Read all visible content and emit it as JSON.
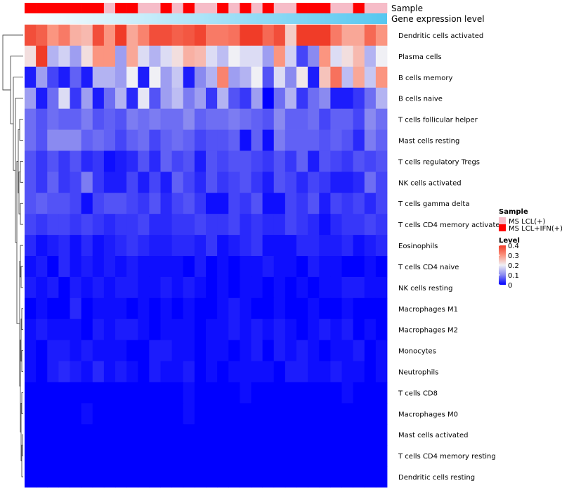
{
  "chart_data": {
    "type": "heatmap",
    "title": "",
    "annotation_labels": [
      "Sample",
      "Gene expression level"
    ],
    "sample_groups": [
      "MS LCL+IFN(+)",
      "MS LCL+IFN(+)",
      "MS LCL+IFN(+)",
      "MS LCL+IFN(+)",
      "MS LCL+IFN(+)",
      "MS LCL+IFN(+)",
      "MS LCL+IFN(+)",
      "MS LCL(+)",
      "MS LCL+IFN(+)",
      "MS LCL+IFN(+)",
      "MS LCL(+)",
      "MS LCL(+)",
      "MS LCL+IFN(+)",
      "MS LCL(+)",
      "MS LCL+IFN(+)",
      "MS LCL(+)",
      "MS LCL(+)",
      "MS LCL+IFN(+)",
      "MS LCL(+)",
      "MS LCL+IFN(+)",
      "MS LCL(+)",
      "MS LCL+IFN(+)",
      "MS LCL(+)",
      "MS LCL(+)",
      "MS LCL+IFN(+)",
      "MS LCL+IFN(+)",
      "MS LCL+IFN(+)",
      "MS LCL(+)",
      "MS LCL(+)",
      "MS LCL+IFN(+)",
      "MS LCL(+)",
      "MS LCL(+)"
    ],
    "expression_level": [
      0.0,
      0.03,
      0.06,
      0.1,
      0.13,
      0.16,
      0.19,
      0.23,
      0.26,
      0.29,
      0.32,
      0.35,
      0.39,
      0.42,
      0.45,
      0.48,
      0.52,
      0.55,
      0.58,
      0.61,
      0.65,
      0.68,
      0.71,
      0.74,
      0.77,
      0.81,
      0.84,
      0.87,
      0.9,
      0.94,
      0.97,
      1.0
    ],
    "rows": [
      "Dendritic cells activated",
      "Plasma cells",
      "B cells memory",
      "B cells naive",
      "T cells follicular helper",
      "Mast cells resting",
      "T cells regulatory  Tregs",
      "NK cells activated",
      "T cells gamma delta",
      "T cells CD4 memory activated",
      "Eosinophils",
      "T cells CD4 naive",
      "NK cells resting",
      "Macrophages M1",
      "Macrophages M2",
      "Monocytes",
      "Neutrophils",
      "T cells CD8",
      "Macrophages M0",
      "Mast cells activated",
      "T cells CD4 memory resting",
      "Dendritic cells resting"
    ],
    "values": [
      [
        0.38,
        0.36,
        0.3,
        0.33,
        0.27,
        0.26,
        0.38,
        0.3,
        0.4,
        0.28,
        0.32,
        0.38,
        0.38,
        0.36,
        0.37,
        0.39,
        0.33,
        0.33,
        0.34,
        0.4,
        0.4,
        0.35,
        0.38,
        0.24,
        0.4,
        0.4,
        0.4,
        0.33,
        0.28,
        0.28,
        0.35,
        0.3
      ],
      [
        0.22,
        0.4,
        0.14,
        0.17,
        0.12,
        0.22,
        0.3,
        0.3,
        0.12,
        0.28,
        0.18,
        0.14,
        0.18,
        0.22,
        0.27,
        0.26,
        0.18,
        0.15,
        0.2,
        0.18,
        0.18,
        0.12,
        0.3,
        0.17,
        0.05,
        0.1,
        0.3,
        0.18,
        0.22,
        0.26,
        0.14,
        0.2
      ],
      [
        0.02,
        0.12,
        0.05,
        0.02,
        0.07,
        0.02,
        0.14,
        0.14,
        0.12,
        0.2,
        0.02,
        0.2,
        0.12,
        0.16,
        0.02,
        0.1,
        0.14,
        0.32,
        0.12,
        0.14,
        0.2,
        0.06,
        0.18,
        0.1,
        0.21,
        0.02,
        0.25,
        0.34,
        0.15,
        0.28,
        0.16,
        0.3
      ],
      [
        0.12,
        0.02,
        0.08,
        0.18,
        0.04,
        0.12,
        0.02,
        0.08,
        0.14,
        0.03,
        0.19,
        0.06,
        0.12,
        0.15,
        0.09,
        0.12,
        0.04,
        0.14,
        0.06,
        0.04,
        0.12,
        0.0,
        0.08,
        0.14,
        0.04,
        0.08,
        0.1,
        0.02,
        0.02,
        0.04,
        0.08,
        0.14
      ],
      [
        0.08,
        0.06,
        0.08,
        0.07,
        0.07,
        0.09,
        0.06,
        0.07,
        0.06,
        0.09,
        0.08,
        0.09,
        0.08,
        0.08,
        0.1,
        0.07,
        0.08,
        0.08,
        0.09,
        0.08,
        0.07,
        0.06,
        0.1,
        0.07,
        0.07,
        0.08,
        0.05,
        0.07,
        0.07,
        0.05,
        0.1,
        0.08
      ],
      [
        0.08,
        0.06,
        0.1,
        0.1,
        0.1,
        0.07,
        0.08,
        0.07,
        0.05,
        0.07,
        0.08,
        0.05,
        0.07,
        0.08,
        0.07,
        0.05,
        0.06,
        0.06,
        0.07,
        0.01,
        0.07,
        0.01,
        0.09,
        0.07,
        0.07,
        0.07,
        0.06,
        0.07,
        0.06,
        0.03,
        0.09,
        0.07
      ],
      [
        0.06,
        0.04,
        0.06,
        0.04,
        0.06,
        0.03,
        0.04,
        0.01,
        0.02,
        0.03,
        0.06,
        0.03,
        0.07,
        0.05,
        0.06,
        0.02,
        0.06,
        0.05,
        0.06,
        0.06,
        0.05,
        0.04,
        0.06,
        0.04,
        0.07,
        0.02,
        0.06,
        0.05,
        0.04,
        0.06,
        0.05,
        0.06
      ],
      [
        0.06,
        0.04,
        0.07,
        0.04,
        0.05,
        0.09,
        0.04,
        0.02,
        0.02,
        0.05,
        0.02,
        0.05,
        0.02,
        0.07,
        0.05,
        0.03,
        0.06,
        0.04,
        0.05,
        0.06,
        0.04,
        0.02,
        0.06,
        0.05,
        0.03,
        0.05,
        0.04,
        0.02,
        0.02,
        0.03,
        0.08,
        0.05
      ],
      [
        0.06,
        0.07,
        0.06,
        0.06,
        0.05,
        0.01,
        0.05,
        0.06,
        0.06,
        0.05,
        0.04,
        0.06,
        0.03,
        0.05,
        0.06,
        0.04,
        0.01,
        0.01,
        0.05,
        0.04,
        0.06,
        0.01,
        0.01,
        0.05,
        0.04,
        0.06,
        0.02,
        0.05,
        0.04,
        0.05,
        0.03,
        0.05
      ],
      [
        0.05,
        0.04,
        0.05,
        0.05,
        0.04,
        0.05,
        0.04,
        0.03,
        0.04,
        0.04,
        0.05,
        0.03,
        0.03,
        0.04,
        0.04,
        0.05,
        0.04,
        0.04,
        0.05,
        0.03,
        0.04,
        0.03,
        0.03,
        0.05,
        0.04,
        0.03,
        0.01,
        0.03,
        0.04,
        0.04,
        0.05,
        0.04
      ],
      [
        0.03,
        0.01,
        0.02,
        0.03,
        0.01,
        0.03,
        0.01,
        0.02,
        0.03,
        0.04,
        0.03,
        0.02,
        0.02,
        0.03,
        0.03,
        0.02,
        0.04,
        0.01,
        0.02,
        0.03,
        0.04,
        0.01,
        0.01,
        0.01,
        0.03,
        0.03,
        0.02,
        0.02,
        0.03,
        0.01,
        0.02,
        0.03
      ],
      [
        0.01,
        0.02,
        0.0,
        0.03,
        0.01,
        0.02,
        0.01,
        0.02,
        0.01,
        0.02,
        0.01,
        0.01,
        0.01,
        0.01,
        0.0,
        0.02,
        0.0,
        0.01,
        0.0,
        0.01,
        0.01,
        0.02,
        0.01,
        0.01,
        0.0,
        0.02,
        0.01,
        0.01,
        0.0,
        0.0,
        0.01,
        0.0
      ],
      [
        0.02,
        0.01,
        0.02,
        0.0,
        0.02,
        0.01,
        0.02,
        0.01,
        0.02,
        0.02,
        0.01,
        0.01,
        0.02,
        0.01,
        0.02,
        0.01,
        0.0,
        0.01,
        0.0,
        0.01,
        0.01,
        0.0,
        0.01,
        0.0,
        0.01,
        0.0,
        0.01,
        0.01,
        0.02,
        0.02,
        0.01,
        0.01
      ],
      [
        0.0,
        0.01,
        0.0,
        0.0,
        0.03,
        0.0,
        0.01,
        0.01,
        0.01,
        0.0,
        0.01,
        0.0,
        0.01,
        0.0,
        0.01,
        0.0,
        0.0,
        0.01,
        0.02,
        0.01,
        0.0,
        0.0,
        0.01,
        0.0,
        0.0,
        0.01,
        0.0,
        0.0,
        0.01,
        0.0,
        0.0,
        0.0
      ],
      [
        0.01,
        0.02,
        0.01,
        0.01,
        0.01,
        0.0,
        0.02,
        0.01,
        0.02,
        0.02,
        0.01,
        0.0,
        0.01,
        0.01,
        0.01,
        0.0,
        0.01,
        0.01,
        0.02,
        0.01,
        0.02,
        0.01,
        0.02,
        0.01,
        0.0,
        0.01,
        0.02,
        0.01,
        0.02,
        0.0,
        0.01,
        0.0
      ],
      [
        0.01,
        0.0,
        0.02,
        0.02,
        0.01,
        0.02,
        0.01,
        0.01,
        0.01,
        0.0,
        0.0,
        0.02,
        0.02,
        0.01,
        0.01,
        0.0,
        0.01,
        0.01,
        0.0,
        0.01,
        0.02,
        0.0,
        0.02,
        0.01,
        0.02,
        0.01,
        0.0,
        0.01,
        0.01,
        0.02,
        0.0,
        0.01
      ],
      [
        0.01,
        0.0,
        0.02,
        0.03,
        0.02,
        0.01,
        0.03,
        0.01,
        0.02,
        0.01,
        0.0,
        0.02,
        0.01,
        0.01,
        0.02,
        0.0,
        0.01,
        0.0,
        0.01,
        0.01,
        0.01,
        0.01,
        0.0,
        0.02,
        0.02,
        0.01,
        0.01,
        0.02,
        0.01,
        0.01,
        0.0,
        0.01
      ],
      [
        0.0,
        0.0,
        0.0,
        0.0,
        0.0,
        0.0,
        0.0,
        0.0,
        0.0,
        0.0,
        0.0,
        0.0,
        0.0,
        0.0,
        0.01,
        0.0,
        0.0,
        0.0,
        0.0,
        0.01,
        0.0,
        0.0,
        0.0,
        0.0,
        0.0,
        0.0,
        0.0,
        0.0,
        0.01,
        0.0,
        0.0,
        0.0
      ],
      [
        0.0,
        0.0,
        0.0,
        0.0,
        0.0,
        0.01,
        0.0,
        0.0,
        0.0,
        0.0,
        0.0,
        0.0,
        0.0,
        0.0,
        0.01,
        0.0,
        0.0,
        0.0,
        0.0,
        0.0,
        0.0,
        0.0,
        0.0,
        0.0,
        0.0,
        0.0,
        0.0,
        0.0,
        0.0,
        0.0,
        0.0,
        0.0
      ],
      [
        0.0,
        0.0,
        0.0,
        0.0,
        0.0,
        0.0,
        0.0,
        0.0,
        0.0,
        0.0,
        0.0,
        0.0,
        0.0,
        0.0,
        0.0,
        0.0,
        0.0,
        0.0,
        0.0,
        0.0,
        0.0,
        0.0,
        0.0,
        0.0,
        0.0,
        0.0,
        0.0,
        0.0,
        0.0,
        0.0,
        0.0,
        0.0
      ],
      [
        0.0,
        0.0,
        0.0,
        0.0,
        0.0,
        0.0,
        0.0,
        0.0,
        0.0,
        0.0,
        0.0,
        0.0,
        0.0,
        0.0,
        0.0,
        0.0,
        0.0,
        0.0,
        0.0,
        0.0,
        0.0,
        0.0,
        0.0,
        0.0,
        0.0,
        0.0,
        0.0,
        0.0,
        0.0,
        0.0,
        0.0,
        0.0
      ],
      [
        0.0,
        0.0,
        0.0,
        0.0,
        0.0,
        0.0,
        0.0,
        0.0,
        0.0,
        0.0,
        0.0,
        0.0,
        0.0,
        0.0,
        0.0,
        0.0,
        0.0,
        0.0,
        0.0,
        0.0,
        0.0,
        0.0,
        0.0,
        0.0,
        0.0,
        0.0,
        0.0,
        0.0,
        0.0,
        0.0,
        0.0,
        0.0
      ]
    ],
    "color_scale": {
      "min": 0,
      "max": 0.4,
      "stops": [
        {
          "value": 0.0,
          "color": "#0000ff"
        },
        {
          "value": 0.1,
          "color": "#8a8af0"
        },
        {
          "value": 0.2,
          "color": "#f0f0f5"
        },
        {
          "value": 0.3,
          "color": "#fb9580"
        },
        {
          "value": 0.4,
          "color": "#f03c28"
        }
      ]
    },
    "legends": {
      "sample": {
        "title": "Sample",
        "items": [
          {
            "label": "MS LCL(+)",
            "color": "#f6bcc8"
          },
          {
            "label": "MS LCL+IFN(+)",
            "color": "#ff0000"
          }
        ]
      },
      "level": {
        "title": "Level",
        "ticks": [
          "0.4",
          "0.3",
          "0.2",
          "0.1",
          "0"
        ]
      }
    },
    "expression_colors": {
      "low": "#ffffff",
      "high": "#56c7f0"
    },
    "dendrogram": "row clustering tree (left)"
  }
}
